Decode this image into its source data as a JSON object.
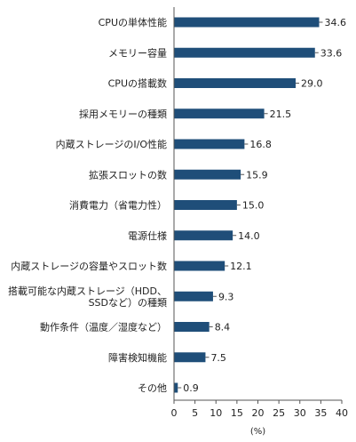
{
  "chart_data": {
    "type": "bar",
    "orientation": "horizontal",
    "categories": [
      [
        "CPUの単体性能"
      ],
      [
        "メモリー容量"
      ],
      [
        "CPUの搭載数"
      ],
      [
        "採用メモリーの種類"
      ],
      [
        "内蔵ストレージのI/O性能"
      ],
      [
        "拡張スロットの数"
      ],
      [
        "消費電力（省電力性）"
      ],
      [
        "電源仕様"
      ],
      [
        "内蔵ストレージの容量やスロット数"
      ],
      [
        "搭載可能な内蔵ストレージ（HDD、",
        "SSDなど）の種類"
      ],
      [
        "動作条件（温度／湿度など）"
      ],
      [
        "障害検知機能"
      ],
      [
        "その他"
      ]
    ],
    "values": [
      34.6,
      33.6,
      29.0,
      21.5,
      16.8,
      15.9,
      15.0,
      14.0,
      12.1,
      9.3,
      8.4,
      7.5,
      0.9
    ],
    "value_labels": [
      "34.6",
      "33.6",
      "29.0",
      "21.5",
      "16.8",
      "15.9",
      "15.0",
      "14.0",
      "12.1",
      "9.3",
      "8.4",
      "7.5",
      "0.9"
    ],
    "xlim": [
      0,
      40
    ],
    "xticks": [
      "0",
      "5",
      "10",
      "15",
      "20",
      "25",
      "30",
      "35",
      "40"
    ],
    "xlabel": "(%)",
    "bar_color": "#1f4e79",
    "grid": false,
    "legend": false
  }
}
